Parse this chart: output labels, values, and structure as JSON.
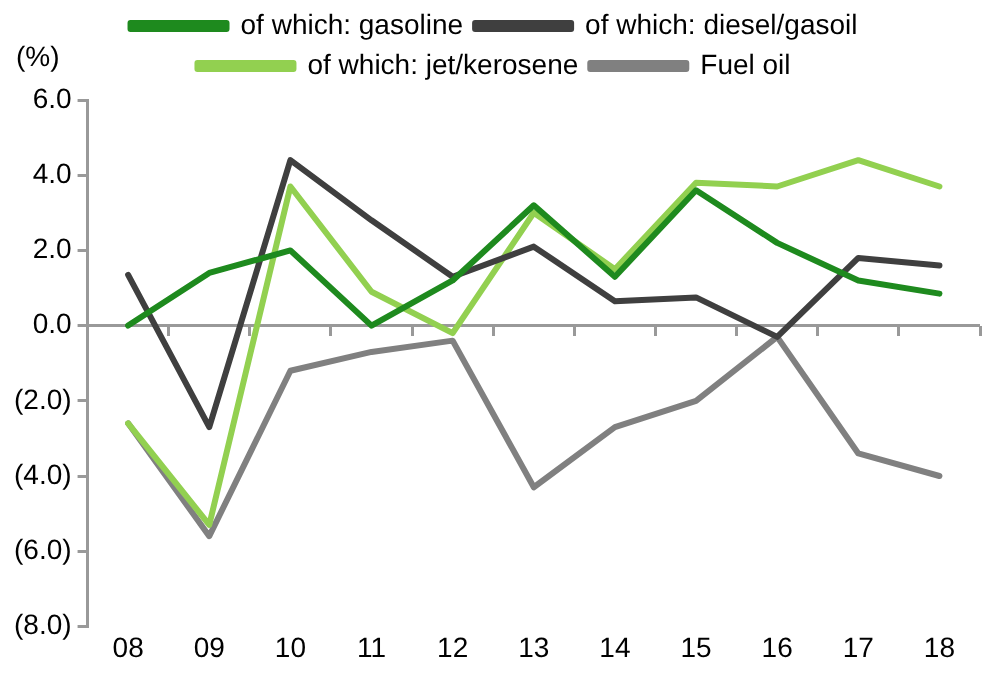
{
  "chart_data": {
    "type": "line",
    "ylabel": "(%)",
    "categories": [
      "08",
      "09",
      "10",
      "11",
      "12",
      "13",
      "14",
      "15",
      "16",
      "17",
      "18"
    ],
    "series": [
      {
        "name": "of which: gasoline",
        "color": "#1e8a1e",
        "values": [
          0.0,
          1.4,
          2.0,
          0.0,
          1.2,
          3.2,
          1.3,
          3.6,
          2.2,
          1.2,
          0.85
        ]
      },
      {
        "name": "of which: diesel/gasoil",
        "color": "#3f3f3f",
        "values": [
          1.35,
          -2.7,
          4.4,
          2.8,
          1.3,
          2.1,
          0.65,
          0.75,
          -0.3,
          1.8,
          1.6
        ]
      },
      {
        "name": "of which: jet/kerosene",
        "color": "#92d050",
        "values": [
          -2.6,
          -5.3,
          3.7,
          0.9,
          -0.2,
          3.0,
          1.5,
          3.8,
          3.7,
          4.4,
          3.7
        ]
      },
      {
        "name": "Fuel oil",
        "color": "#808080",
        "values": [
          -2.6,
          -5.6,
          -1.2,
          -0.7,
          -0.4,
          -4.3,
          -2.7,
          -2.0,
          -0.3,
          -3.4,
          -4.0
        ]
      }
    ],
    "ylim": [
      -8,
      6
    ],
    "yticks": [
      {
        "value": -8,
        "label": "(8.0)"
      },
      {
        "value": -6,
        "label": "(6.0)"
      },
      {
        "value": -4,
        "label": "(4.0)"
      },
      {
        "value": -2,
        "label": "(2.0)"
      },
      {
        "value": 0,
        "label": "0.0"
      },
      {
        "value": 2,
        "label": "2.0"
      },
      {
        "value": 4,
        "label": "4.0"
      },
      {
        "value": 6,
        "label": "6.0"
      }
    ],
    "ref_lines": [
      {
        "axis": "y",
        "value": 0,
        "color": "#999999"
      }
    ],
    "grid": false,
    "legend": "top",
    "marker": "none",
    "line_style": "solid"
  }
}
